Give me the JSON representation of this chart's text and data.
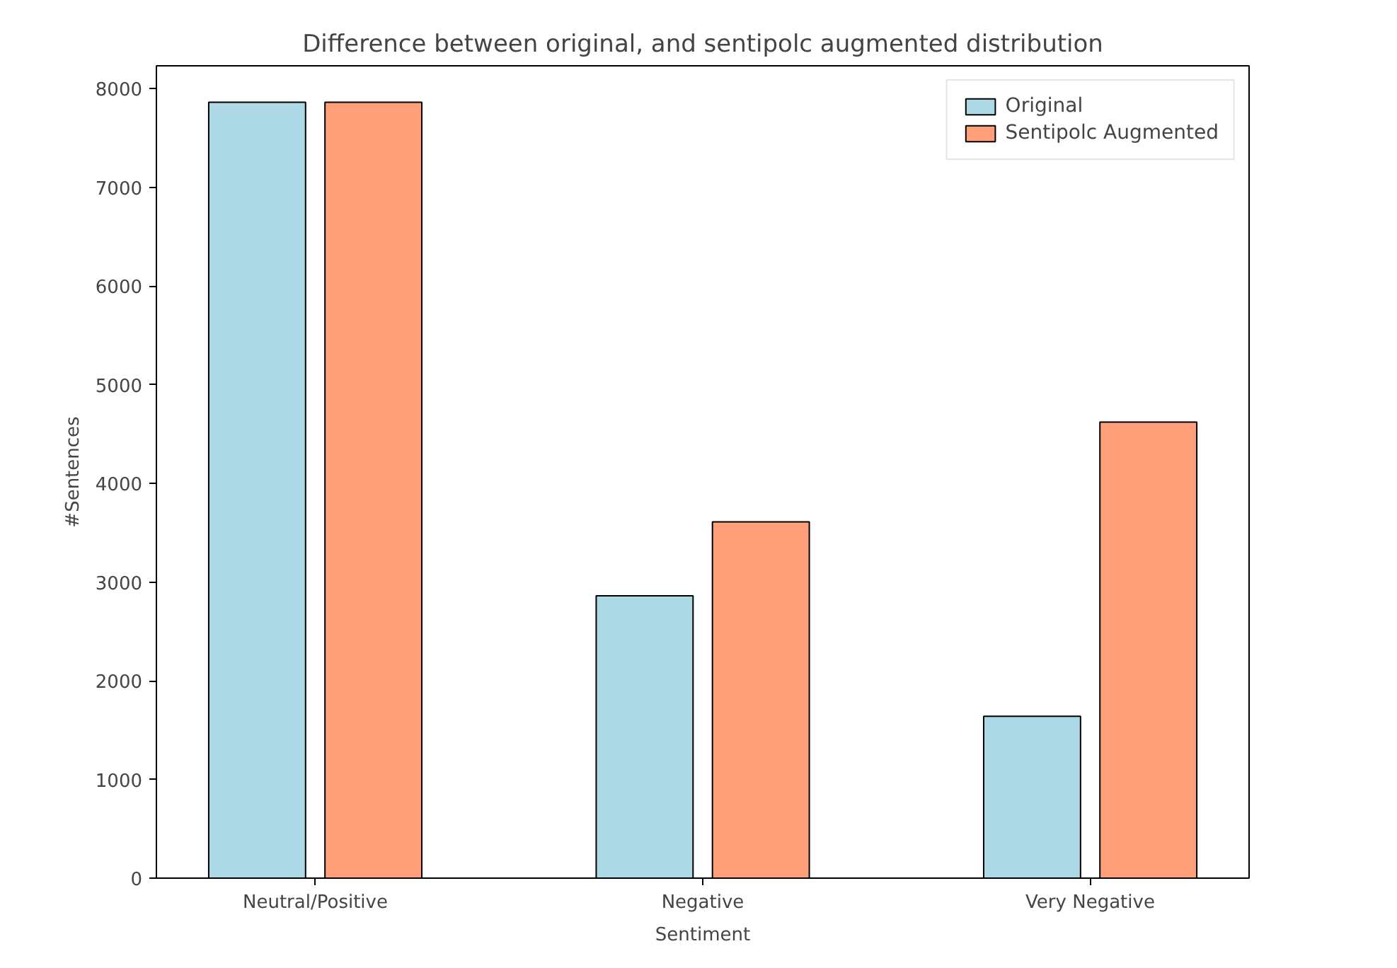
{
  "chart_data": {
    "type": "bar",
    "title": "Difference between original, and sentipolc augmented distribution",
    "xlabel": "Sentiment",
    "ylabel": "#Sentences",
    "categories": [
      "Neutral/Positive",
      "Negative",
      "Very Negative"
    ],
    "series": [
      {
        "name": "Original",
        "color": "#add8e6",
        "values": [
          7860,
          2860,
          1640
        ]
      },
      {
        "name": "Sentipolc Augmented",
        "color": "#ffa07a",
        "values": [
          7860,
          3610,
          4620
        ]
      }
    ],
    "ylim": [
      0,
      8230
    ],
    "yticks": [
      0,
      1000,
      2000,
      3000,
      4000,
      5000,
      6000,
      7000,
      8000
    ],
    "grid": false,
    "legend": "top right"
  }
}
